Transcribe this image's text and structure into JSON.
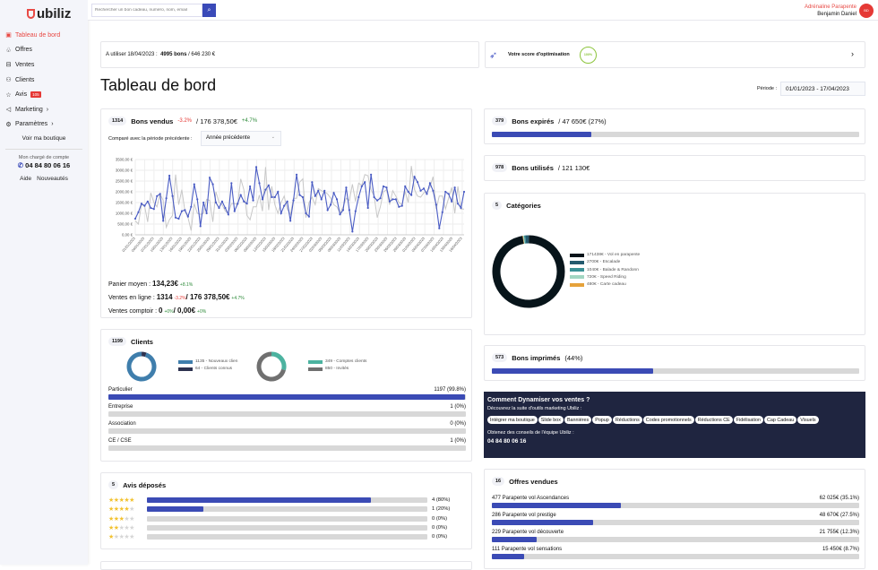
{
  "sidebar": {
    "logo": "ubiliz",
    "items": [
      {
        "label": "Tableau de bord",
        "icon": "dashboard-icon"
      },
      {
        "label": "Offres",
        "icon": "offers-icon"
      },
      {
        "label": "Ventes",
        "icon": "sales-icon"
      },
      {
        "label": "Clients",
        "icon": "users-icon"
      },
      {
        "label": "Avis",
        "icon": "star-icon",
        "badge": "105"
      },
      {
        "label": "Marketing",
        "icon": "megaphone-icon",
        "chevron": "›"
      },
      {
        "label": "Paramètres",
        "icon": "gear-icon",
        "chevron": "›"
      }
    ],
    "shop_link": "Voir ma boutique",
    "account_label": "Mon chargé de compte",
    "account_phone": "04 84 80 06 16",
    "help": "Aide",
    "news": "Nouveautés"
  },
  "topbar": {
    "search_placeholder": "Rechercher un bon cadeau, numéro, nom, email",
    "company": "Adrénaline Parapente",
    "user": "Benjamin Daniel",
    "initials": "BD"
  },
  "summary": {
    "prefix": "A utiliser 18/04/2023 :",
    "bons": "4995 bons",
    "amount": "/ 646 230 €"
  },
  "score": {
    "label": "Votre score d'optimisation",
    "value": "100%",
    "chevron": "›"
  },
  "page_title": "Tableau de bord",
  "period": {
    "label": "Période :",
    "value": "01/01/2023 - 17/04/2023"
  },
  "bons_vendus": {
    "count": "1314",
    "title": "Bons vendus",
    "count_delta": "-3.2%",
    "amount": "/ 176 378,50€",
    "amount_delta": "+4.7%",
    "compare_label": "Comparé avec la période précédente :",
    "compare_value": "Année précédente",
    "panier_label": "Panier moyen :",
    "panier_value": "134,23€",
    "panier_delta": "+8.1%",
    "online_label": "Ventes en ligne :",
    "online_count": "1314",
    "online_count_delta": "-3.2%",
    "online_amount": "/ 176 378,50€",
    "online_amount_delta": "+4.7%",
    "counter_label": "Ventes comptoir :",
    "counter_count": "0",
    "counter_count_delta": "+0%",
    "counter_amount": "/ 0,00€",
    "counter_amount_delta": "+0%"
  },
  "chart_data": {
    "type": "line",
    "ylim": [
      0,
      3500
    ],
    "yticks": [
      "0,00 €",
      "500,00 €",
      "1000,00 €",
      "1500,00 €",
      "2000,00 €",
      "2500,00 €",
      "3000,00 €",
      "3500,00 €"
    ],
    "xticks": [
      "01/01/2023",
      "04/01/2023",
      "07/01/2023",
      "10/01/2023",
      "13/01/2023",
      "16/01/2023",
      "19/01/2023",
      "22/01/2023",
      "25/01/2023",
      "28/01/2023",
      "31/01/2023",
      "03/02/2023",
      "06/02/2023",
      "09/02/2023",
      "12/02/2023",
      "15/02/2023",
      "18/02/2023",
      "21/02/2023",
      "24/02/2023",
      "27/02/2023",
      "02/03/2023",
      "05/03/2023",
      "08/03/2023",
      "11/03/2023",
      "14/03/2023",
      "17/03/2023",
      "20/03/2023",
      "23/03/2023",
      "26/03/2023",
      "29/03/2023",
      "01/04/2023",
      "04/04/2023",
      "07/04/2023",
      "10/04/2023",
      "13/04/2023",
      "16/04/2023"
    ],
    "grid": true,
    "series": [
      {
        "color": "#4a5cc4",
        "markers": true,
        "values": [
          750,
          1050,
          1450,
          1350,
          1550,
          1250,
          1200,
          1800,
          1900,
          650,
          1700,
          2750,
          1800,
          800,
          750,
          1100,
          1150,
          850,
          1300,
          2350,
          1650,
          400,
          1500,
          1000,
          2650,
          2350,
          1500,
          1250,
          1550,
          1250,
          950,
          2400,
          1100,
          1450,
          1850,
          1550,
          1450,
          2250,
          1600,
          3150,
          2400,
          1650,
          2100,
          2300,
          1750,
          1750,
          2000,
          1000,
          1350,
          1550,
          650,
          1600,
          2800,
          1850,
          1750,
          1000,
          850,
          2450,
          1800,
          2050,
          1650,
          2050,
          1150,
          1400,
          1950,
          1650,
          950,
          1150,
          2200,
          1150,
          150,
          1100,
          1750,
          2250,
          2450,
          1250,
          2800,
          1750,
          1600,
          1700,
          2250,
          2200,
          1550,
          1650,
          1650,
          1300,
          1350,
          2250,
          2000,
          1850,
          2700,
          2450,
          2050,
          2150,
          1900,
          2400,
          2050,
          1400,
          300,
          1050,
          2000,
          1900,
          1550,
          2200,
          1450,
          1250,
          2000
        ]
      },
      {
        "color": "#c8c8c8",
        "markers": false,
        "values": [
          650,
          500,
          1400,
          1350,
          600,
          1950,
          1500,
          1300,
          1900,
          1600,
          350,
          700,
          900,
          2800,
          1400,
          2100,
          1100,
          800,
          200,
          1450,
          1000,
          950,
          1000,
          1650,
          1600,
          600,
          2000,
          1500,
          1400,
          1100,
          1000,
          1450,
          1450,
          1400,
          2600,
          2100,
          900,
          700,
          1300,
          1300,
          1850,
          1100,
          3150,
          1150,
          2250,
          1400,
          1000,
          1500,
          1800,
          1200,
          950,
          1700,
          1700,
          2450,
          2600,
          800,
          1500,
          1750,
          1400,
          2150,
          2050,
          2000,
          1900,
          1700,
          1400,
          1300,
          1000,
          1300,
          1700,
          1600,
          2350,
          1550,
          2400,
          2300,
          2800,
          2750,
          2100,
          1800,
          800,
          1300,
          2000,
          2100,
          1400,
          2050,
          1800,
          1500,
          1400,
          2000,
          1500,
          3200,
          2100,
          1800,
          1750,
          1950,
          2000,
          2200,
          2700,
          1200,
          1800,
          1800,
          1200,
          1700,
          2200,
          1000,
          2250,
          1200,
          1200
        ]
      }
    ]
  },
  "clients": {
    "count": "1199",
    "title": "Clients",
    "donut1": [
      {
        "label": "1135 - Nouveaux clien",
        "value": 1135,
        "color": "#3f7eac"
      },
      {
        "label": "64 - Clients connus",
        "value": 64,
        "color": "#2e3350"
      }
    ],
    "donut2": [
      {
        "label": "349 - Comptes clients",
        "value": 349,
        "color": "#4cb3a0"
      },
      {
        "label": "850 - Invités",
        "value": 850,
        "color": "#707070"
      }
    ],
    "types": [
      {
        "label": "Particulier",
        "value": "1197 (99.8%)",
        "pct": 99.8
      },
      {
        "label": "Entreprise",
        "value": "1 (0%)",
        "pct": 0
      },
      {
        "label": "Association",
        "value": "0 (0%)",
        "pct": 0
      },
      {
        "label": "CE / CSE",
        "value": "1 (0%)",
        "pct": 0
      }
    ]
  },
  "avis": {
    "count": "5",
    "title": "Avis déposés",
    "rows": [
      {
        "stars": 5,
        "value": "4 (80%)",
        "pct": 80
      },
      {
        "stars": 4,
        "value": "1 (20%)",
        "pct": 20
      },
      {
        "stars": 3,
        "value": "0 (0%)",
        "pct": 0
      },
      {
        "stars": 2,
        "value": "0 (0%)",
        "pct": 0
      },
      {
        "stars": 1,
        "value": "0 (0%)",
        "pct": 0
      }
    ]
  },
  "expires": {
    "count": "379",
    "title": "Bons expirés",
    "detail": "/ 47 650€ (27%)",
    "pct": 27
  },
  "utilises": {
    "count": "978",
    "title": "Bons utilisés",
    "detail": "/ 121 130€"
  },
  "categories": {
    "count": "5",
    "title": "Catégories",
    "items": [
      {
        "label": "171438€ - Vol en parapente",
        "value": 171438,
        "color": "#07141a"
      },
      {
        "label": "2700€ - Escalade",
        "value": 2700,
        "color": "#245a6e"
      },
      {
        "label": "1040€ - Balade & Randonn",
        "value": 1040,
        "color": "#3b9196"
      },
      {
        "label": "720€ - Speed Riding",
        "value": 720,
        "color": "#a2d6c2"
      },
      {
        "label": "480€ - Carte cadeau",
        "value": 480,
        "color": "#e6a23a"
      }
    ]
  },
  "imprimes": {
    "count": "573",
    "title": "Bons imprimés",
    "detail": "(44%)",
    "pct": 44
  },
  "marketing": {
    "title": "Comment Dynamiser vos ventes ?",
    "subtitle": "Découvrez la suite d'outils marketing Ubiliz :",
    "chips": [
      "Intégrer ma boutique",
      "Slide box",
      "Bannières",
      "Popup",
      "Réductions",
      "Codes promotionnels",
      "Réductions CE",
      "Fidélisation",
      "Cap Cadeau",
      "Visuels"
    ],
    "advice": "Obtenez des conseils de l'équipe Ubiliz :",
    "phone": "04 84 80 06 16"
  },
  "offres": {
    "count": "16",
    "title": "Offres vendues",
    "rows": [
      {
        "label": "477 Parapente vol Ascendances",
        "value": "62 025€ (35.1%)",
        "pct": 35.1
      },
      {
        "label": "286 Parapente vol prestige",
        "value": "48 670€ (27.5%)",
        "pct": 27.5
      },
      {
        "label": "229 Parapente vol découverte",
        "value": "21 755€ (12.3%)",
        "pct": 12.3
      },
      {
        "label": "111 Parapente vol sensations",
        "value": "15 450€ (8.7%)",
        "pct": 8.7
      }
    ]
  }
}
